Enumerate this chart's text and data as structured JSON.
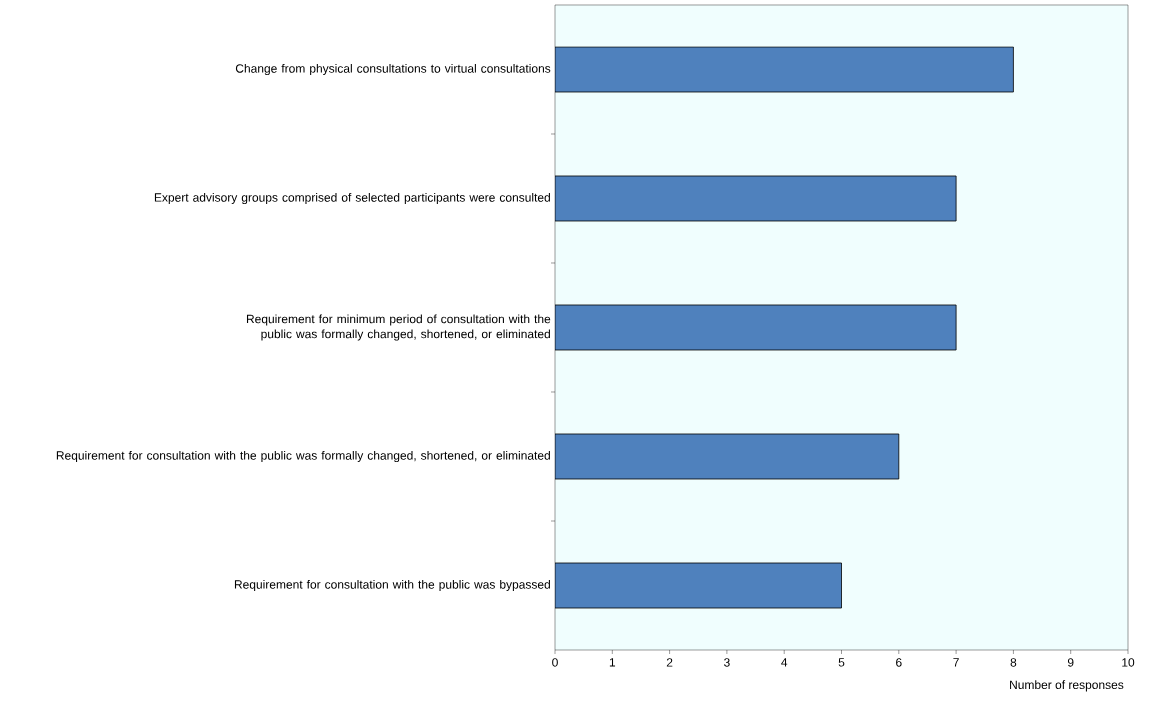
{
  "chart_data": {
    "type": "bar",
    "orientation": "horizontal",
    "categories": [
      "Change from physical consultations to virtual consultations",
      "Expert advisory groups comprised of selected participants were consulted",
      "Requirement for minimum period of consultation with the public was formally changed, shortened, or eliminated",
      "Requirement for consultation with the public was formally changed, shortened, or eliminated",
      "Requirement for consultation with the public was bypassed"
    ],
    "values": [
      8,
      7,
      7,
      6,
      5
    ],
    "color": "#4f81bd",
    "xlim": [
      0,
      10
    ],
    "xticks": [
      0,
      1,
      2,
      3,
      4,
      5,
      6,
      7,
      8,
      9,
      10
    ],
    "xlabel": "Number of responses"
  }
}
